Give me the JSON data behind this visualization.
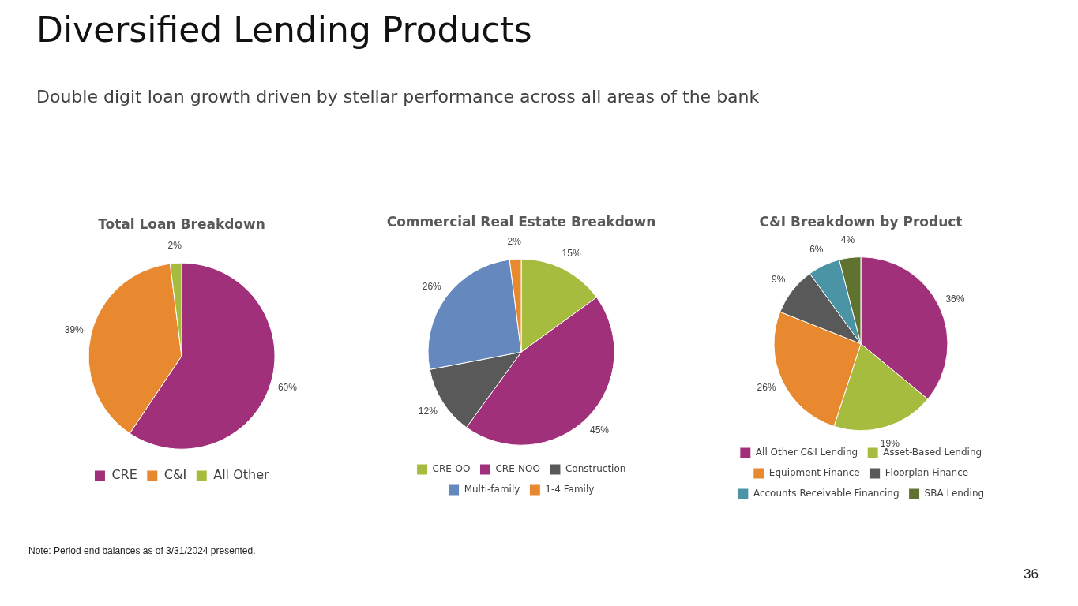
{
  "chart_data": [
    {
      "type": "other",
      "title": "Diversified Lending Products",
      "subtitle": "Double digit loan growth driven by stellar performance across all areas of the bank",
      "annotations": [
        "Note: Period end balances as of 3/31/2024 presented.",
        "36"
      ]
    },
    {
      "type": "pie",
      "title": "Total Loan Breakdown",
      "categories": [
        "CRE",
        "C&I",
        "All Other"
      ],
      "values": [
        60,
        39,
        2
      ],
      "colors": [
        "#a0307a",
        "#e8892f",
        "#a6bc3e"
      ],
      "value_labels": [
        "60%",
        "39%",
        "2%"
      ],
      "legend": "bottom"
    },
    {
      "type": "pie",
      "title": "Commercial Real Estate Breakdown",
      "categories": [
        "CRE-OO",
        "CRE-NOO",
        "Construction",
        "Multi-family",
        "1-4 Family"
      ],
      "values": [
        15,
        45,
        12,
        26,
        2
      ],
      "colors": [
        "#a6bc3e",
        "#a0307a",
        "#595959",
        "#6589bf",
        "#e8892f"
      ],
      "value_labels": [
        "15%",
        "45%",
        "12%",
        "26%",
        "2%"
      ],
      "legend": "bottom"
    },
    {
      "type": "pie",
      "title": "C&I Breakdown by Product",
      "categories": [
        "All Other C&I Lending",
        "Asset-Based Lending",
        "Equipment Finance",
        "Floorplan Finance",
        "Accounts Receivable Financing",
        "SBA Lending"
      ],
      "values": [
        36,
        19,
        26,
        9,
        6,
        4
      ],
      "colors": [
        "#a0307a",
        "#a6bc3e",
        "#e8892f",
        "#595959",
        "#4a94a6",
        "#5f7230"
      ],
      "value_labels": [
        "36%",
        "19%",
        "26%",
        "9%",
        "6%",
        "4%"
      ],
      "legend": "bottom"
    }
  ]
}
